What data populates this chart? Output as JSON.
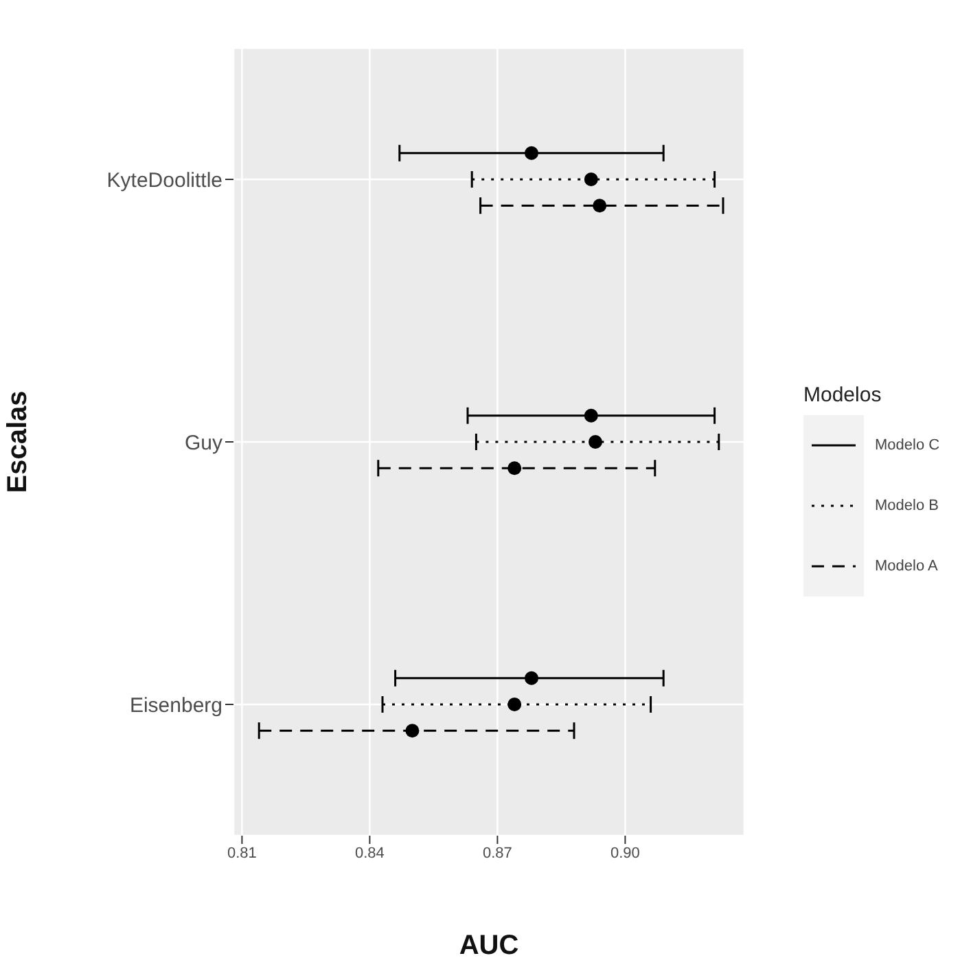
{
  "chart_data": {
    "type": "scatter",
    "orientation": "horizontal",
    "xlabel": "AUC",
    "ylabel": "Escalas",
    "legend_title": "Modelos",
    "categories": [
      "KyteDoolittle",
      "Guy",
      "Eisenberg"
    ],
    "series": [
      {
        "name": "Modelo C",
        "color": "#000000",
        "line_style": "solid",
        "values": [
          0.878,
          0.892,
          0.878
        ],
        "errors": [
          [
            0.847,
            0.909
          ],
          [
            0.863,
            0.921
          ],
          [
            0.846,
            0.909
          ]
        ]
      },
      {
        "name": "Modelo B",
        "color": "#000000",
        "line_style": "dotted",
        "values": [
          0.892,
          0.893,
          0.874
        ],
        "errors": [
          [
            0.864,
            0.921
          ],
          [
            0.865,
            0.922
          ],
          [
            0.843,
            0.906
          ]
        ]
      },
      {
        "name": "Modelo A",
        "color": "#000000",
        "line_style": "dashed",
        "values": [
          0.894,
          0.874,
          0.85
        ],
        "errors": [
          [
            0.866,
            0.923
          ],
          [
            0.842,
            0.907
          ],
          [
            0.814,
            0.888
          ]
        ]
      }
    ],
    "xlim": [
      0.808,
      0.928
    ],
    "xticks": [
      0.81,
      0.84,
      0.87,
      {
        "value": 0.9,
        "label": "0.90"
      }
    ],
    "grid": true,
    "legend": "right",
    "marker": "circle"
  }
}
